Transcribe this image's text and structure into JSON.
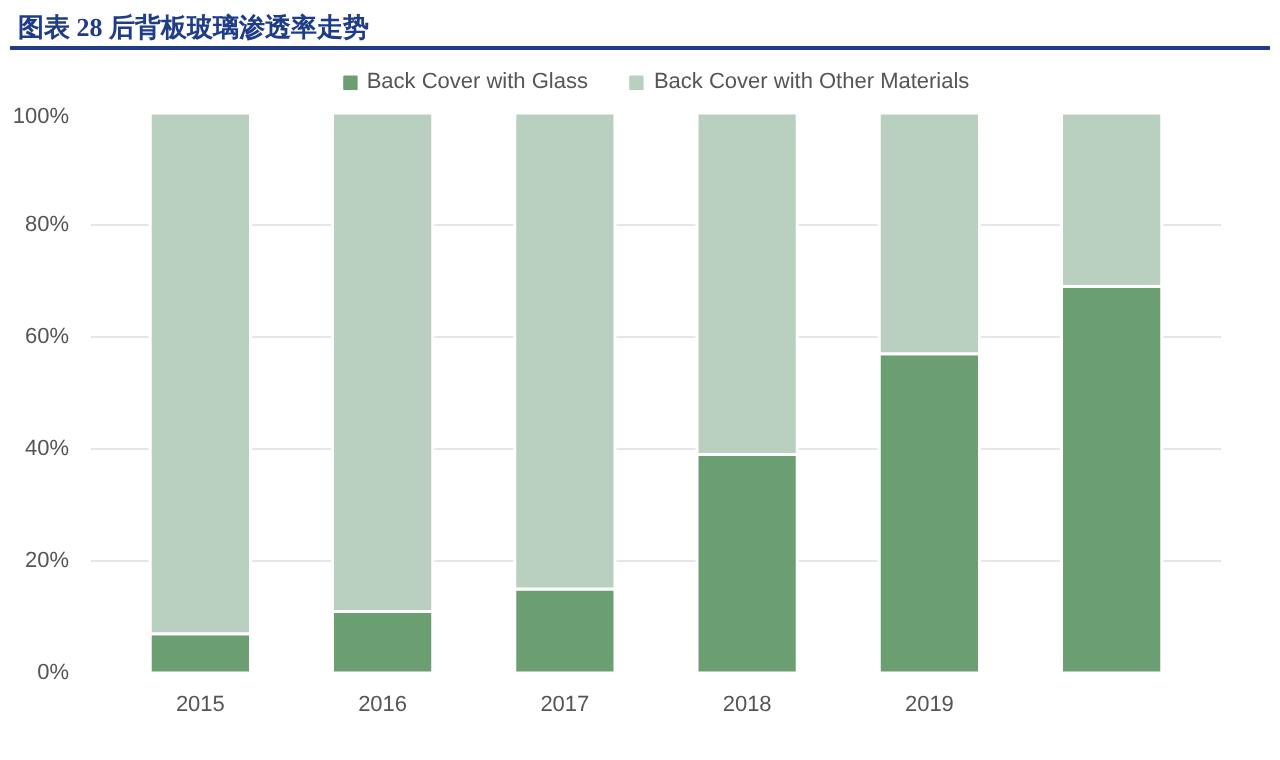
{
  "chart_data": {
    "type": "bar",
    "title": "图表 28   后背板玻璃渗透率走势",
    "stacked": true,
    "categories": [
      "2015",
      "2016",
      "2017",
      "2018",
      "2019",
      null
    ],
    "series": [
      {
        "name": "Back Cover with Glass",
        "color": "#6b9e70",
        "values": [
          7,
          11,
          15,
          39,
          57,
          69
        ]
      },
      {
        "name": "Back Cover with Other Materials",
        "color": "#b9cfbf",
        "values": [
          93,
          89,
          85,
          61,
          43,
          31
        ]
      }
    ],
    "ylim": [
      0,
      100
    ],
    "yticks": [
      {
        "value": 0,
        "label": "0%"
      },
      {
        "value": 20,
        "label": "20%"
      },
      {
        "value": 40,
        "label": "40%"
      },
      {
        "value": 60,
        "label": "60%"
      },
      {
        "value": 80,
        "label": "80%"
      },
      {
        "value": 100,
        "label": "100%"
      }
    ],
    "grid": "y",
    "legend": "top"
  }
}
